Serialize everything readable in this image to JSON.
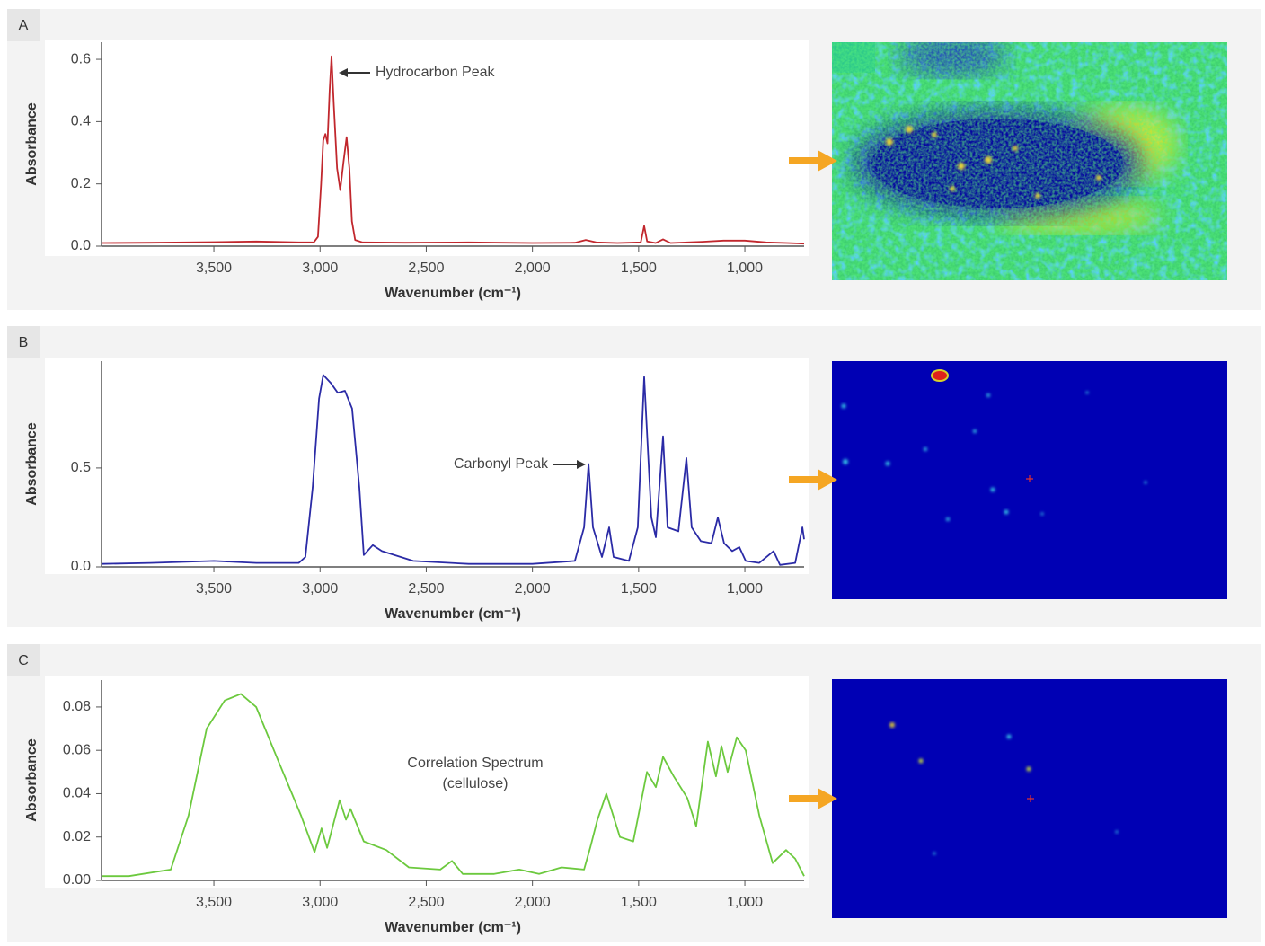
{
  "chart_data": [
    {
      "type": "line",
      "label": "A",
      "color": "#c1272d",
      "ylabel": "Absorbance",
      "xlabel": "Wavenumber (cm⁻¹)",
      "annotation": [
        "Hydrocarbon Peak"
      ],
      "xlim": [
        4029,
        721
      ],
      "ylim": [
        0,
        0.655
      ],
      "xticks": [
        {
          "value": 3500,
          "label": "3,500"
        },
        {
          "value": 3000,
          "label": "3,000"
        },
        {
          "value": 2500,
          "label": "2,500"
        },
        {
          "value": 2000,
          "label": "2,000"
        },
        {
          "value": 1500,
          "label": "1,500"
        },
        {
          "value": 1000,
          "label": "1,000"
        }
      ],
      "yticks": [
        {
          "value": 0,
          "label": "0.0"
        },
        0.2,
        0.4,
        0.6
      ],
      "x": [
        4029,
        3800,
        3500,
        3300,
        3100,
        3030,
        3010,
        2995,
        2985,
        2975,
        2965,
        2955,
        2946,
        2935,
        2920,
        2905,
        2890,
        2875,
        2862,
        2850,
        2835,
        2800,
        2600,
        2300,
        2000,
        1800,
        1749,
        1700,
        1600,
        1490,
        1474,
        1460,
        1420,
        1385,
        1350,
        1200,
        1100,
        1000,
        900,
        800,
        721
      ],
      "values": [
        0.01,
        0.011,
        0.013,
        0.015,
        0.012,
        0.012,
        0.03,
        0.2,
        0.34,
        0.36,
        0.33,
        0.5,
        0.61,
        0.45,
        0.25,
        0.18,
        0.27,
        0.35,
        0.25,
        0.08,
        0.02,
        0.012,
        0.011,
        0.012,
        0.01,
        0.011,
        0.02,
        0.012,
        0.01,
        0.012,
        0.065,
        0.015,
        0.01,
        0.022,
        0.01,
        0.014,
        0.018,
        0.018,
        0.012,
        0.01,
        0.008
      ]
    },
    {
      "type": "line",
      "label": "B",
      "color": "#2b2ba6",
      "ylabel": "Absorbance",
      "xlabel": "Wavenumber (cm⁻¹)",
      "annotation": [
        "Carbonyl Peak"
      ],
      "xlim": [
        4029,
        721
      ],
      "ylim": [
        0,
        1.04
      ],
      "xticks": [
        {
          "value": 3500,
          "label": "3,500"
        },
        {
          "value": 3000,
          "label": "3,000"
        },
        {
          "value": 2500,
          "label": "2,500"
        },
        {
          "value": 2000,
          "label": "2,000"
        },
        {
          "value": 1500,
          "label": "1,500"
        },
        {
          "value": 1000,
          "label": "1,000"
        }
      ],
      "yticks": [
        {
          "value": 0,
          "label": "0.0"
        },
        0.5
      ],
      "x": [
        4029,
        3800,
        3500,
        3300,
        3100,
        3069,
        3035,
        3005,
        2985,
        2950,
        2917,
        2883,
        2849,
        2815,
        2794,
        2752,
        2709,
        2561,
        2300,
        2000,
        1800,
        1757,
        1736,
        1715,
        1673,
        1639,
        1618,
        1546,
        1504,
        1474,
        1440,
        1419,
        1385,
        1364,
        1313,
        1275,
        1250,
        1207,
        1157,
        1127,
        1098,
        1060,
        1026,
        996,
        932,
        865,
        835,
        763,
        729,
        721
      ],
      "values": [
        0.015,
        0.02,
        0.03,
        0.02,
        0.02,
        0.05,
        0.4,
        0.85,
        0.97,
        0.93,
        0.88,
        0.89,
        0.8,
        0.4,
        0.06,
        0.11,
        0.08,
        0.03,
        0.015,
        0.015,
        0.03,
        0.2,
        0.52,
        0.2,
        0.05,
        0.2,
        0.05,
        0.03,
        0.2,
        0.96,
        0.25,
        0.15,
        0.66,
        0.2,
        0.18,
        0.55,
        0.2,
        0.13,
        0.12,
        0.25,
        0.12,
        0.08,
        0.1,
        0.03,
        0.02,
        0.08,
        0.01,
        0.02,
        0.2,
        0.14
      ]
    },
    {
      "type": "line",
      "label": "C",
      "color": "#6cc93e",
      "ylabel": "Absorbance",
      "xlabel": "Wavenumber (cm⁻¹)",
      "annotation": [
        "Correlation Spectrum",
        "(cellulose)"
      ],
      "xlim": [
        4029,
        721
      ],
      "ylim": [
        0,
        0.0924
      ],
      "xticks": [
        {
          "value": 3500,
          "label": "3,500"
        },
        {
          "value": 3000,
          "label": "3,000"
        },
        {
          "value": 2500,
          "label": "2,500"
        },
        {
          "value": 2000,
          "label": "2,000"
        },
        {
          "value": 1500,
          "label": "1,500"
        },
        {
          "value": 1000,
          "label": "1,000"
        }
      ],
      "yticks": [
        {
          "value": 0,
          "label": "0.00"
        },
        0.02,
        0.04,
        0.06,
        0.08
      ],
      "x": [
        4029,
        3900,
        3703,
        3619,
        3534,
        3449,
        3373,
        3301,
        3196,
        3090,
        3026,
        2993,
        2967,
        2908,
        2878,
        2857,
        2794,
        2688,
        2582,
        2434,
        2379,
        2328,
        2180,
        2062,
        1969,
        1863,
        1757,
        1728,
        1694,
        1652,
        1588,
        1525,
        1461,
        1419,
        1385,
        1335,
        1271,
        1229,
        1174,
        1136,
        1110,
        1081,
        1038,
        996,
        932,
        869,
        806,
        763,
        721
      ],
      "values": [
        0.002,
        0.002,
        0.005,
        0.03,
        0.07,
        0.083,
        0.086,
        0.08,
        0.055,
        0.03,
        0.013,
        0.024,
        0.015,
        0.037,
        0.028,
        0.033,
        0.018,
        0.014,
        0.006,
        0.005,
        0.009,
        0.003,
        0.003,
        0.005,
        0.003,
        0.006,
        0.005,
        0.015,
        0.028,
        0.04,
        0.02,
        0.018,
        0.05,
        0.043,
        0.057,
        0.048,
        0.038,
        0.025,
        0.064,
        0.048,
        0.062,
        0.05,
        0.066,
        0.06,
        0.03,
        0.008,
        0.014,
        0.01,
        0.002
      ]
    }
  ]
}
